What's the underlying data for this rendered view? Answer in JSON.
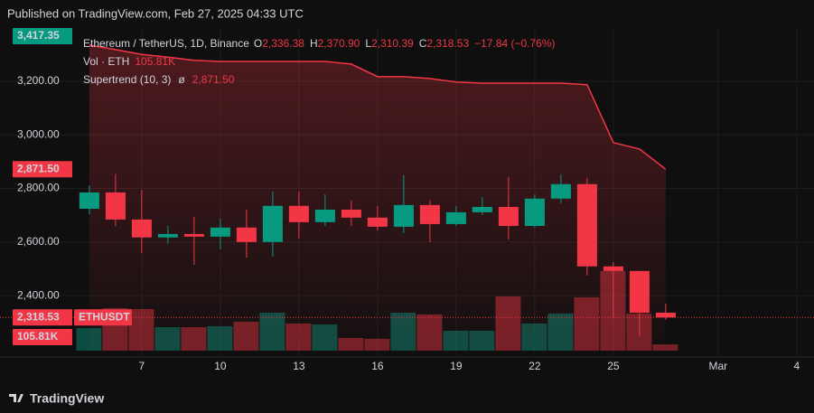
{
  "header": {
    "published": "Published on TradingView.com, Feb 27, 2025 04:33 UTC"
  },
  "chart_data": {
    "type": "candlestick",
    "title": "Ethereum / TetherUS, 1D, Binance",
    "ohlc_legend": [
      {
        "key": "O",
        "text": "2,336.38"
      },
      {
        "key": "H",
        "text": "2,370.90"
      },
      {
        "key": "L",
        "text": "2,310.39"
      },
      {
        "key": "C",
        "text": "2,318.53"
      }
    ],
    "change_text": "−17.84 (−0.76%)",
    "x": [
      5,
      6,
      7,
      8,
      9,
      10,
      11,
      12,
      13,
      14,
      15,
      16,
      17,
      18,
      19,
      20,
      21,
      22,
      23,
      24,
      25,
      26,
      27
    ],
    "open": [
      2724,
      2785,
      2684,
      2617,
      2630,
      2620,
      2654,
      2600,
      2735,
      2674,
      2721,
      2691,
      2657,
      2738,
      2667,
      2711,
      2731,
      2660,
      2762,
      2816,
      2509,
      2492,
      2336.38
    ],
    "high": [
      2812,
      2853,
      2795,
      2660,
      2694,
      2687,
      2721,
      2789,
      2789,
      2778,
      2755,
      2735,
      2849,
      2755,
      2735,
      2768,
      2843,
      2778,
      2853,
      2839,
      2525,
      2492,
      2370.9
    ],
    "low": [
      2704,
      2660,
      2559,
      2593,
      2515,
      2573,
      2542,
      2546,
      2613,
      2660,
      2660,
      2643,
      2633,
      2600,
      2660,
      2701,
      2610,
      2654,
      2745,
      2475,
      2316,
      2249,
      2310.39
    ],
    "close": [
      2785,
      2684,
      2617,
      2630,
      2620,
      2654,
      2600,
      2735,
      2674,
      2721,
      2691,
      2657,
      2738,
      2667,
      2711,
      2731,
      2660,
      2762,
      2816,
      2509,
      2492,
      2336,
      2318.53
    ],
    "up_color": "#089981",
    "down_color": "#f23645",
    "volume": {
      "name": "Vol · ETH",
      "values": [
        378000,
        710000,
        695000,
        393000,
        393000,
        408000,
        484000,
        635000,
        453000,
        438000,
        212000,
        197000,
        635000,
        605000,
        333000,
        333000,
        907000,
        453000,
        620000,
        892000,
        1331000,
        620000,
        105810
      ],
      "value_labels": [
        null,
        null,
        null,
        null,
        null,
        null,
        null,
        null,
        null,
        null,
        null,
        null,
        null,
        null,
        null,
        null,
        null,
        null,
        null,
        null,
        null,
        null,
        "105.81K"
      ]
    },
    "supertrend": {
      "name": "Supertrend (10, 3)",
      "symbol": "ø",
      "color": "#f23645",
      "values": [
        3335,
        3318,
        3300,
        3290,
        3278,
        3274,
        3274,
        3274,
        3274,
        3274,
        3264,
        3217,
        3217,
        3210,
        3197,
        3193,
        3193,
        3193,
        3193,
        3187,
        2971,
        2947,
        2871.5
      ],
      "last_label": "2,871.50"
    },
    "high_label": {
      "value": 3417.35,
      "label": "3,417.35"
    },
    "last_price_label": "2,318.53",
    "symbol_label": "ETHUSDT",
    "xlim": [
      1.59,
      32.66
    ],
    "xticks": [
      7,
      10,
      13,
      16,
      19,
      22,
      25,
      {
        "value": 29,
        "label": "Mar"
      },
      {
        "value": 32,
        "label": "4"
      }
    ],
    "ylim": [
      2171,
      3402
    ],
    "yticks": [
      {
        "value": 2400,
        "label": "2,400.00"
      },
      {
        "value": 2600,
        "label": "2,600.00"
      },
      {
        "value": 2800,
        "label": "2,800.00"
      },
      {
        "value": 3000,
        "label": "3,000.00"
      },
      {
        "value": 3200,
        "label": "3,200.00"
      }
    ],
    "y2lim": [
      0,
      5000000
    ],
    "grid": true
  },
  "footer": {
    "brand": "TradingView"
  }
}
